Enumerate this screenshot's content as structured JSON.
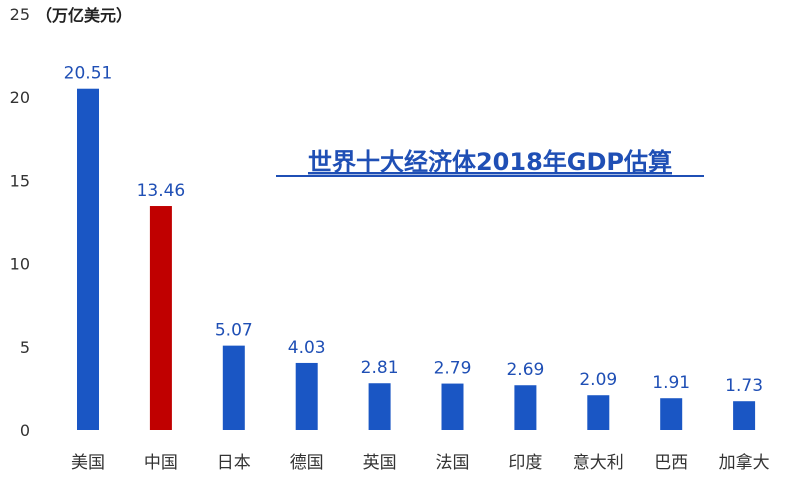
{
  "chart_data": {
    "type": "bar",
    "title": "世界十大经济体2018年GDP估算",
    "unit_label": "（万亿美元）",
    "categories": [
      "美国",
      "中国",
      "日本",
      "德国",
      "英国",
      "法国",
      "印度",
      "意大利",
      "巴西",
      "加拿大"
    ],
    "values": [
      20.51,
      13.46,
      5.07,
      4.03,
      2.81,
      2.79,
      2.69,
      2.09,
      1.91,
      1.73
    ],
    "value_labels": [
      "20.51",
      "13.46",
      "5.07",
      "4.03",
      "2.81",
      "2.79",
      "2.69",
      "2.09",
      "1.91",
      "1.73"
    ],
    "yticks": [
      "0",
      "5",
      "10",
      "15",
      "20",
      "25"
    ],
    "ylim": [
      0,
      25
    ],
    "grid": false,
    "legend": "none",
    "colors": {
      "default_bar": "#1a56c4",
      "highlight_bar": "#c00000",
      "value_label": "#1f4fb5",
      "title": "#1f4fb5",
      "axis_text": "#333333"
    },
    "highlight_index": 1
  }
}
